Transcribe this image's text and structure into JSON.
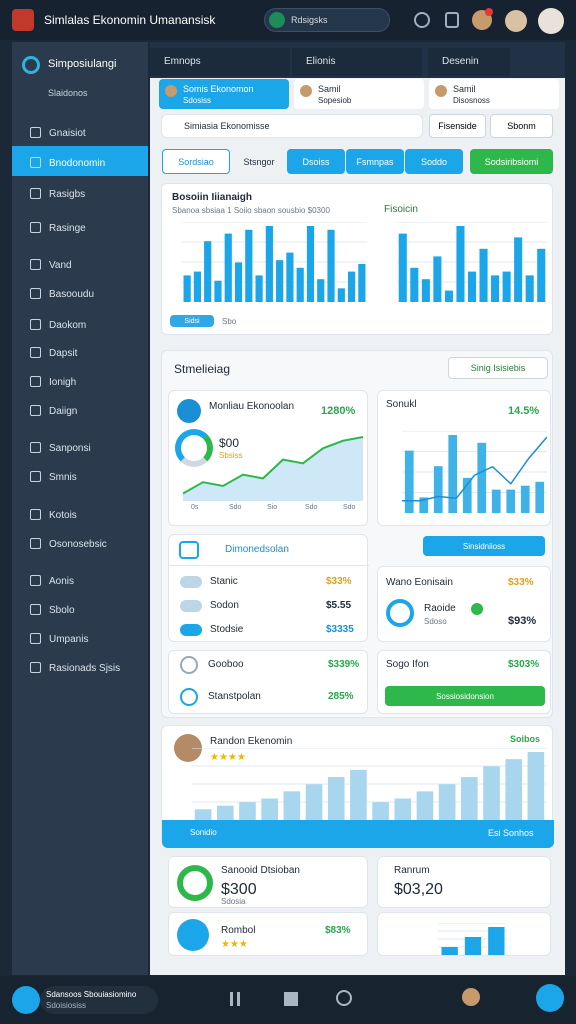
{
  "topbar": {
    "title": "Simlalas Ekonomin Umanansisk",
    "search": "Rdsigsks"
  },
  "sidebar": {
    "title": "Simposiulangi",
    "subtitle": "Slaidonos",
    "items": [
      "Gnaisiot",
      "Bnodonomin",
      "Rasigbs",
      "Rasinge",
      "Vand",
      "Basooudu",
      "Daokom",
      "Dapsit",
      "Ionigh",
      "Daiign",
      "Sanponsi",
      "Smnis",
      "Kotois",
      "Osonosebsic",
      "Aonis",
      "Sbolo",
      "Umpanis",
      "Rasionads Sjsis"
    ]
  },
  "tabs": [
    "Emnops",
    "Elionis",
    "Desenin"
  ],
  "subtabs": [
    {
      "title": "Somis Ekonomon",
      "subtitle": "Sdosiss"
    },
    {
      "title": "Samil",
      "subtitle": "Sopesiob"
    },
    {
      "title": "Samil",
      "subtitle": "Disosnoss"
    }
  ],
  "search": {
    "placeholder": "Simiasia Ekonomisse",
    "buttons": [
      "Fisenside",
      "Sbonm"
    ]
  },
  "actions": [
    "Sordsiao",
    "Stsngor",
    "Dsoiss",
    "Fsmnpas",
    "Soddo",
    "Sodsiribsiomi"
  ],
  "overview": {
    "title": "Bosoiin Iiianaigh",
    "subtitle": "Sbanoa sbsiaa 1 Soiio sbaon sousbio $0300",
    "right_title": "Fisoicin",
    "legend": [
      "Sidsi",
      "Sbo"
    ],
    "left_values": [
      35,
      40,
      80,
      28,
      90,
      52,
      95,
      35,
      100,
      55,
      65,
      45,
      100,
      30,
      95,
      18,
      40,
      50
    ],
    "right_values": [
      90,
      45,
      30,
      60,
      15,
      100,
      40,
      70,
      35,
      40,
      85,
      35,
      70
    ]
  },
  "section": {
    "title": "Stmelieiag",
    "button": "Sinig Isisiebis"
  },
  "card1": {
    "title": "Monliau Ekonoolan",
    "change": "1280%",
    "value": "$00",
    "sub": "Sbsiss",
    "values": [
      10,
      25,
      20,
      35,
      30,
      55,
      50,
      70,
      80,
      85
    ],
    "x_labels": [
      "0s",
      "Sdo",
      "Sio",
      "Sdo",
      "Sdo"
    ]
  },
  "card2": {
    "title": "Sonukl",
    "change": "14.5%",
    "values": [
      80,
      20,
      60,
      100,
      45,
      90,
      30,
      30,
      35,
      40
    ],
    "line": [
      5,
      5,
      10,
      8,
      35,
      45,
      25,
      55,
      80
    ]
  },
  "list": {
    "title": "Dimonedsolan",
    "rows": [
      {
        "label": "Stanic",
        "value": "$33%"
      },
      {
        "label": "Sodon",
        "value": "$5.55"
      },
      {
        "label": "Stodsie",
        "value": "$3335"
      }
    ]
  },
  "side_box": {
    "button": "Sinsidniioss",
    "title": "Wano Eonisain",
    "change": "$33%",
    "label": "Raoide",
    "sub": "Sdoso",
    "value": "$93%"
  },
  "rows2": [
    {
      "label": "Gooboo",
      "value": "$339%"
    },
    {
      "label": "Stanstpolan",
      "value": "285%"
    }
  ],
  "box3": {
    "title": "Sogo Ifon",
    "value": "$303%",
    "button": "Sossiosidonsion"
  },
  "random": {
    "title": "Randon Ekenomin",
    "badge": "Soibos",
    "values": [
      15,
      20,
      25,
      30,
      40,
      50,
      60,
      70,
      25,
      30,
      40,
      50,
      60,
      75,
      85,
      95
    ],
    "bar_text": "Sonidio",
    "bar_right": "Esi Sonhos"
  },
  "bottom": {
    "left": {
      "title": "Sanooid Dtsioban",
      "sub": "Sdosia",
      "value": "$300"
    },
    "right": {
      "title": "Ranrum",
      "value": "$03,20",
      "values": [
        20,
        45,
        70
      ]
    },
    "left2": {
      "title": "Rombol",
      "value": "$83%"
    }
  },
  "footer": {
    "title": "Sdansoos Sbouiasiomino",
    "sub": "Sdoisiosiss"
  }
}
